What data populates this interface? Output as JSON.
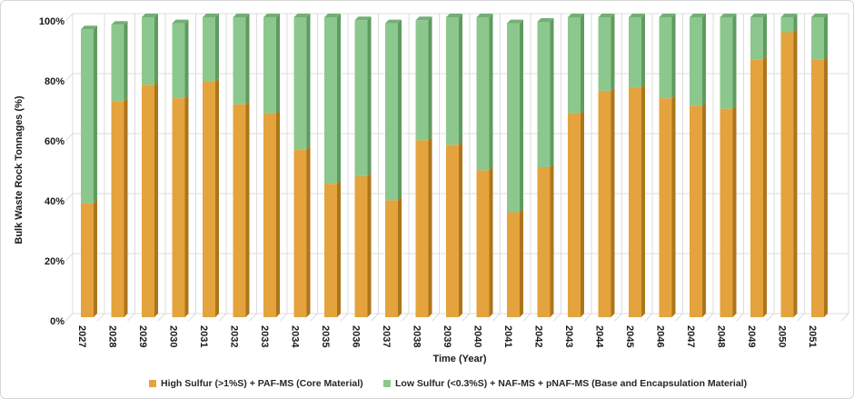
{
  "chart_data": {
    "type": "bar",
    "variant": "3d-stacked-percent",
    "title": "",
    "xlabel": "Time (Year)",
    "ylabel": "Bulk Waste Rock Tonnages (%)",
    "ylim": [
      0,
      100
    ],
    "y_tick_values": [
      0,
      20,
      40,
      60,
      80,
      100
    ],
    "y_tick_labels": [
      "0%",
      "20%",
      "40%",
      "60%",
      "80%",
      "100%"
    ],
    "grid": true,
    "legend_position": "bottom",
    "categories": [
      "2027",
      "2028",
      "2029",
      "2030",
      "2031",
      "2032",
      "2033",
      "2034",
      "2035",
      "2036",
      "2037",
      "2038",
      "2039",
      "2040",
      "2041",
      "2042",
      "2043",
      "2044",
      "2045",
      "2046",
      "2047",
      "2048",
      "2049",
      "2050",
      "2051"
    ],
    "series": [
      {
        "name": "High Sulfur (>1%S) + PAF-MS (Core Material)",
        "color": "#E4A33D",
        "side_color": "#AD761B",
        "values": [
          38,
          72,
          77.5,
          73,
          78.5,
          71,
          68,
          56,
          44.5,
          47,
          39,
          59,
          57.5,
          49,
          35,
          50,
          68,
          75.5,
          76.5,
          73,
          70.5,
          69.5,
          86,
          95,
          86
        ]
      },
      {
        "name": "Low Sulfur (<0.3%S) + NAF-MS + pNAF-MS (Base and Encapsulation Material)",
        "color": "#8CC88D",
        "side_color": "#5F9B61",
        "top_color": "#74AF76",
        "values": [
          58,
          25.5,
          22.5,
          25,
          21.5,
          29,
          32,
          44,
          55.5,
          52,
          59,
          40,
          42.5,
          51,
          63,
          48.5,
          32,
          24.5,
          23.5,
          27,
          29.5,
          30.5,
          14,
          5,
          14
        ]
      }
    ],
    "colors": {
      "gridline": "#DCDCDC",
      "axis_text": "#1A1A1A",
      "background": "#FFFFFF"
    }
  }
}
